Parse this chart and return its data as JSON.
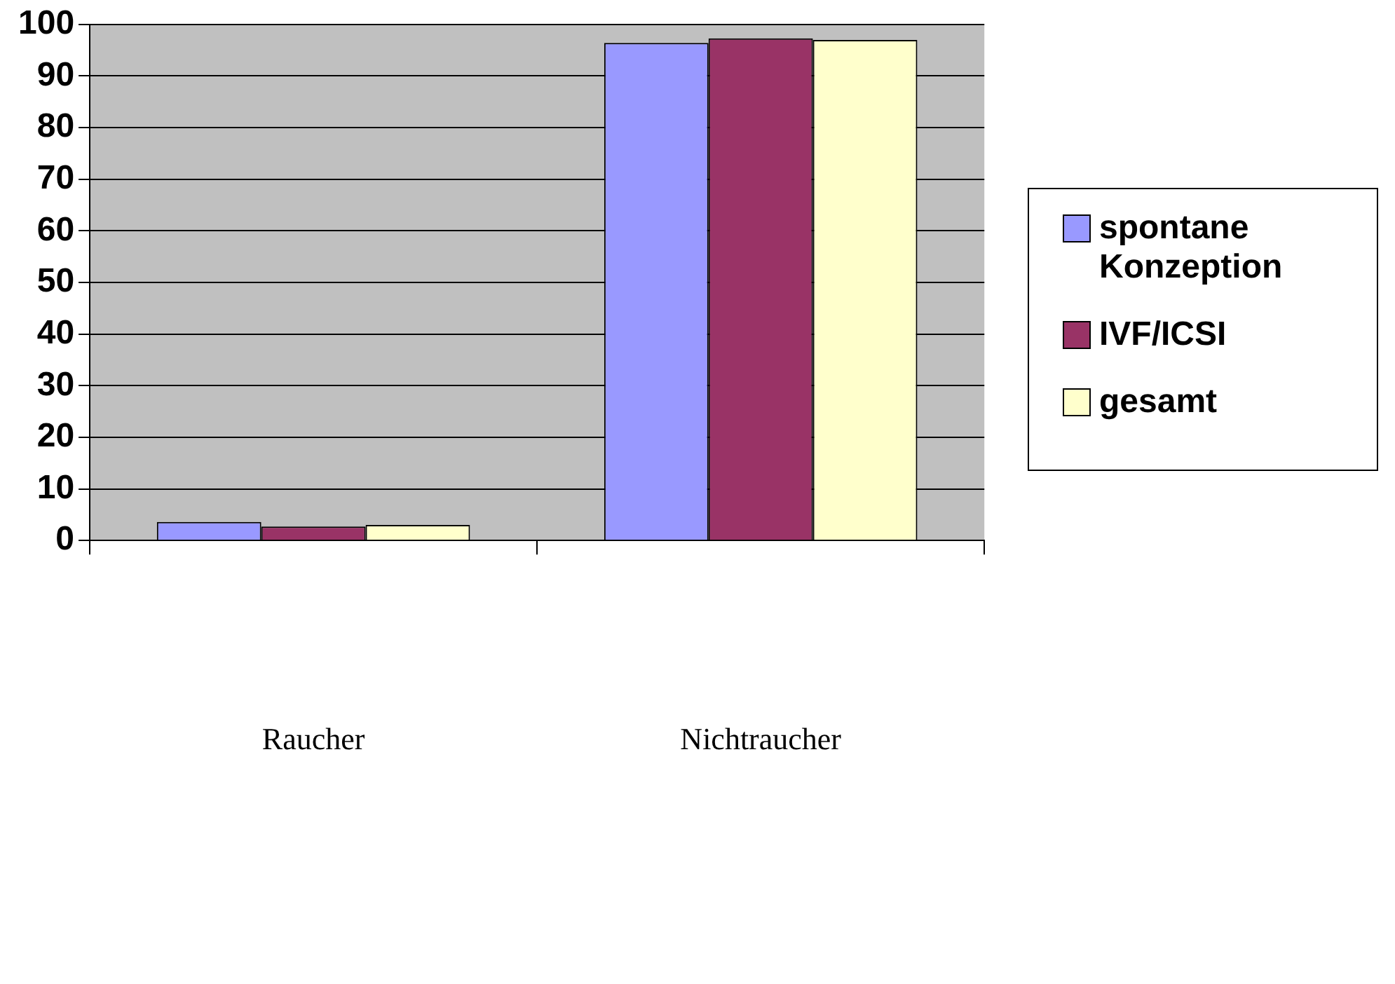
{
  "chart_data": {
    "type": "bar",
    "categories": [
      "Raucher",
      "Nichtraucher"
    ],
    "series": [
      {
        "name": "spontane Konzeption",
        "color": "#9999ff",
        "values": [
          3.6,
          96.4
        ]
      },
      {
        "name": "IVF/ICSI",
        "color": "#993366",
        "values": [
          2.7,
          97.3
        ]
      },
      {
        "name": "gesamt",
        "color": "#ffffcc",
        "values": [
          3.0,
          97.0
        ]
      }
    ],
    "ylim": [
      0,
      100
    ],
    "yticks": [
      0,
      10,
      20,
      30,
      40,
      50,
      60,
      70,
      80,
      90,
      100
    ],
    "grid": "y",
    "legend": "right"
  }
}
